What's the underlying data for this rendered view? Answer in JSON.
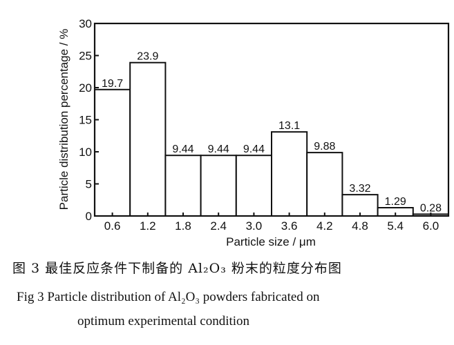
{
  "chart_data": {
    "type": "bar",
    "categories": [
      "0.6",
      "1.2",
      "1.8",
      "2.4",
      "3.0",
      "3.6",
      "4.2",
      "4.8",
      "5.4",
      "6.0"
    ],
    "values": [
      19.7,
      23.9,
      9.44,
      9.44,
      9.44,
      13.1,
      9.88,
      3.32,
      1.29,
      0.28
    ],
    "data_labels": [
      "19.7",
      "23.9",
      "9.44",
      "9.44",
      "9.44",
      "13.1",
      "9.88",
      "3.32",
      "1.29",
      "0.28"
    ],
    "ylabel": "Particle distribution percentage / %",
    "xlabel": "Particle size / μm",
    "ylim": [
      0,
      30
    ],
    "yticks": [
      "0",
      "5",
      "10",
      "15",
      "20",
      "25",
      "30"
    ],
    "grid": false,
    "legend": "none"
  },
  "caption": {
    "chinese": "图 3   最佳反应条件下制备的 Al₂O₃ 粉末的粒度分布图",
    "english_line1": "Fig 3   Particle distribution of Al₂O₃ powders fabricated on",
    "english_line2": "optimum experimental condition"
  }
}
